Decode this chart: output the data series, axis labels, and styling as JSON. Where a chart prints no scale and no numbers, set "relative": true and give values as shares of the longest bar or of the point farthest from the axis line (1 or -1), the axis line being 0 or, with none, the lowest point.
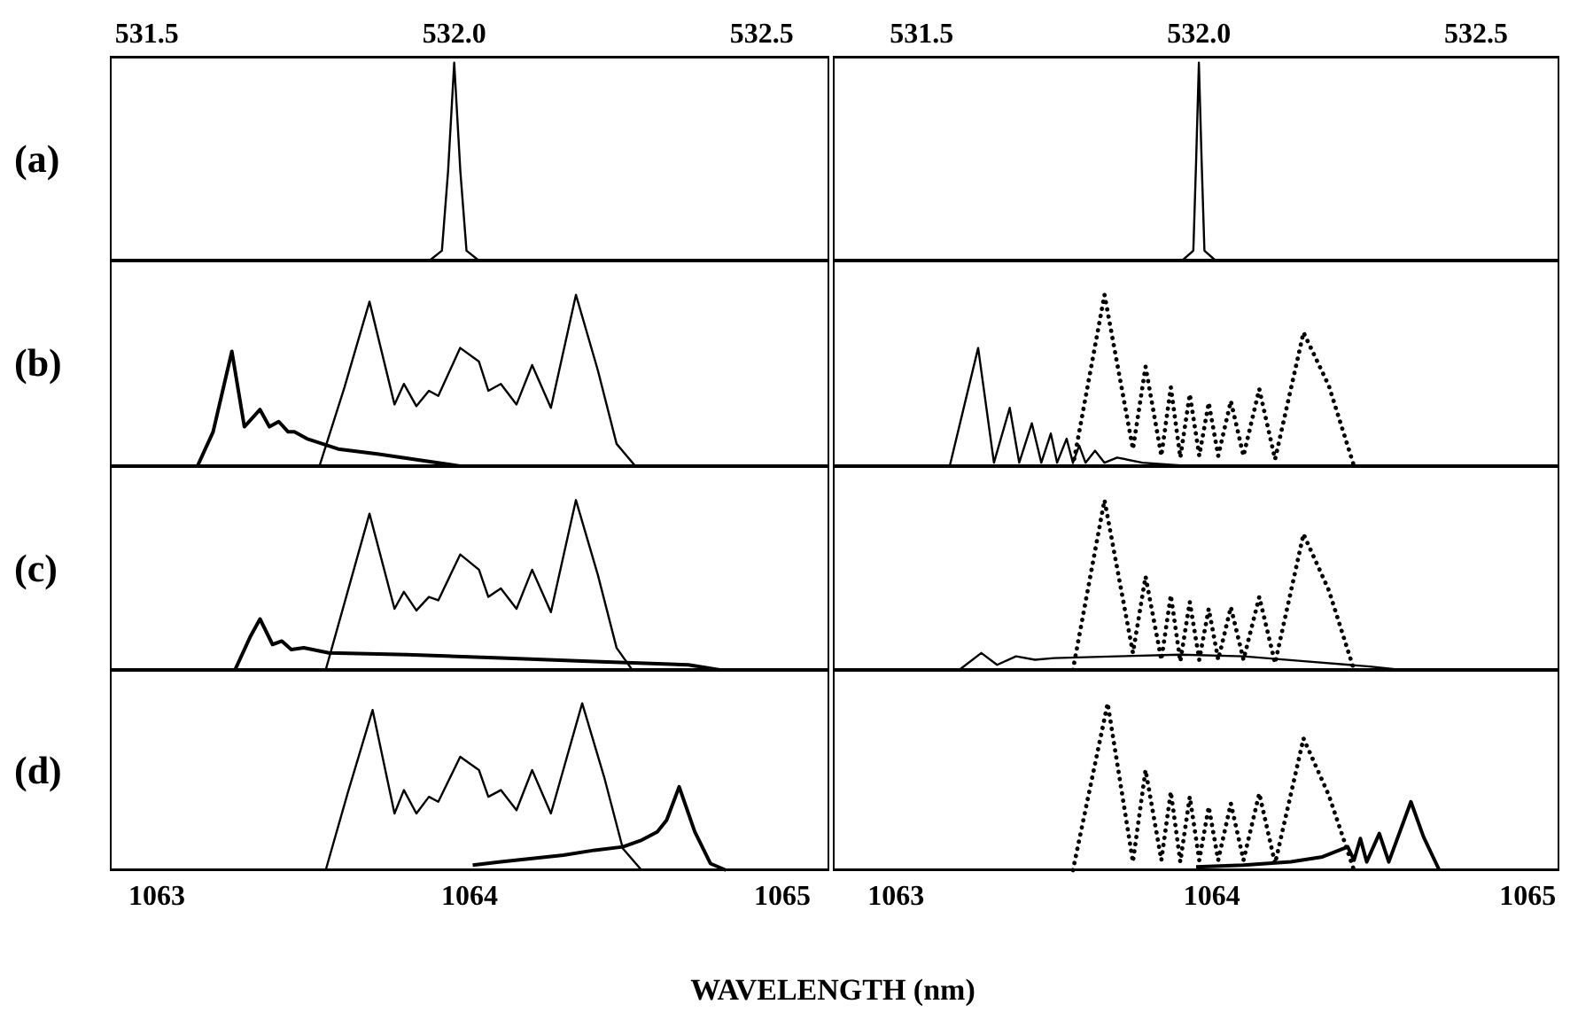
{
  "chart_data": [
    {
      "type": "line",
      "relative": true,
      "ylabel": "(a)",
      "xlim": [
        531.44,
        532.61
      ],
      "xticks": [
        531.5,
        {
          "value": 532,
          "label": "532.0"
        },
        532.5
      ],
      "series": [
        {
          "color": "#000000",
          "line_style": "solid",
          "x": [
            531.96,
            531.98,
            531.99,
            532.0,
            532.01,
            532.02,
            532.04
          ],
          "values": [
            0,
            0.05,
            0.45,
            1,
            0.45,
            0.05,
            0
          ]
        }
      ]
    },
    {
      "type": "line",
      "relative": true,
      "xlim": [
        531.34,
        532.65
      ],
      "xticks": [
        531.5,
        {
          "value": 532,
          "label": "532.0"
        },
        532.5
      ],
      "series": [
        {
          "color": "#000000",
          "line_style": "solid",
          "x": [
            531.97,
            531.99,
            531.995,
            532.0,
            532.005,
            532.01,
            532.03
          ],
          "values": [
            0,
            0.05,
            0.5,
            1,
            0.5,
            0.05,
            0
          ]
        }
      ]
    },
    {
      "type": "line",
      "relative": true,
      "ylabel": "(b)",
      "xlim": [
        1062.85,
        1065.15
      ],
      "tick_labels": false,
      "series": [
        {
          "color": "#000000",
          "line_style": "solid",
          "x": [
            1063.52,
            1063.6,
            1063.68,
            1063.76,
            1063.79,
            1063.83,
            1063.87,
            1063.9,
            1063.97,
            1064.03,
            1064.06,
            1064.1,
            1064.15,
            1064.2,
            1064.26,
            1064.34,
            1064.41,
            1064.47,
            1064.53
          ],
          "values": [
            0,
            0.46,
            0.96,
            0.36,
            0.48,
            0.35,
            0.44,
            0.41,
            0.69,
            0.61,
            0.44,
            0.48,
            0.36,
            0.59,
            0.34,
            1,
            0.56,
            0.13,
            0
          ]
        },
        {
          "color": "#000000",
          "line_style": "solid",
          "x": [
            1063.13,
            1063.18,
            1063.24,
            1063.28,
            1063.33,
            1063.36,
            1063.39,
            1063.42,
            1063.44,
            1063.48,
            1063.58,
            1063.71,
            1063.86,
            1063.97
          ],
          "values": [
            0,
            0.2,
            0.67,
            0.23,
            0.33,
            0.23,
            0.26,
            0.2,
            0.2,
            0.16,
            0.1,
            0.07,
            0.03,
            0
          ]
        }
      ]
    },
    {
      "type": "line",
      "relative": true,
      "xlim": [
        1062.8,
        1065.1
      ],
      "tick_labels": false,
      "series": [
        {
          "color": "#000000",
          "line_style": "solid",
          "x": [
            1063.17,
            1063.26,
            1063.31,
            1063.36,
            1063.39,
            1063.43,
            1063.46,
            1063.49,
            1063.51,
            1063.54,
            1063.56,
            1063.58,
            1063.6,
            1063.63,
            1063.66,
            1063.7,
            1063.78,
            1063.93
          ],
          "values": [
            0,
            0.69,
            0.02,
            0.34,
            0.02,
            0.25,
            0.02,
            0.19,
            0.02,
            0.16,
            0.02,
            0.12,
            0.02,
            0.09,
            0.02,
            0.05,
            0.02,
            0
          ]
        },
        {
          "color": "#000000",
          "line_style": "dotted",
          "x": [
            1063.56,
            1063.66,
            1063.75,
            1063.79,
            1063.84,
            1063.87,
            1063.9,
            1063.93,
            1063.96,
            1063.99,
            1064.02,
            1064.06,
            1064.1,
            1064.15,
            1064.2,
            1064.29,
            1064.37,
            1064.45
          ],
          "values": [
            0,
            1,
            0.1,
            0.58,
            0.06,
            0.46,
            0.05,
            0.42,
            0.06,
            0.37,
            0.06,
            0.38,
            0.06,
            0.45,
            0.04,
            0.78,
            0.47,
            0
          ]
        }
      ]
    },
    {
      "type": "line",
      "relative": true,
      "ylabel": "(c)",
      "xlim": [
        1062.85,
        1065.15
      ],
      "tick_labels": false,
      "series": [
        {
          "color": "#000000",
          "line_style": "solid",
          "x": [
            1063.54,
            1063.61,
            1063.68,
            1063.76,
            1063.79,
            1063.83,
            1063.87,
            1063.9,
            1063.97,
            1064.03,
            1064.06,
            1064.1,
            1064.15,
            1064.2,
            1064.26,
            1064.34,
            1064.41,
            1064.47,
            1064.52
          ],
          "values": [
            0,
            0.46,
            0.92,
            0.36,
            0.46,
            0.35,
            0.43,
            0.41,
            0.68,
            0.59,
            0.43,
            0.48,
            0.36,
            0.59,
            0.34,
            1,
            0.56,
            0.13,
            0
          ]
        },
        {
          "color": "#000000",
          "line_style": "solid",
          "x": [
            1063.25,
            1063.3,
            1063.33,
            1063.37,
            1063.4,
            1063.43,
            1063.47,
            1063.55,
            1063.8,
            1064.1,
            1064.4,
            1064.7,
            1064.8
          ],
          "values": [
            0,
            0.2,
            0.3,
            0.15,
            0.17,
            0.12,
            0.13,
            0.1,
            0.09,
            0.07,
            0.05,
            0.03,
            0
          ]
        }
      ]
    },
    {
      "type": "line",
      "relative": true,
      "xlim": [
        1062.8,
        1065.1
      ],
      "tick_labels": false,
      "series": [
        {
          "color": "#000000",
          "line_style": "solid",
          "x": [
            1063.2,
            1063.27,
            1063.32,
            1063.38,
            1063.44,
            1063.5,
            1063.7,
            1063.9,
            1064.1,
            1064.3,
            1064.5,
            1064.6
          ],
          "values": [
            0,
            0.1,
            0.03,
            0.08,
            0.06,
            0.07,
            0.08,
            0.09,
            0.08,
            0.05,
            0.02,
            0
          ]
        },
        {
          "color": "#000000",
          "line_style": "dotted",
          "x": [
            1063.56,
            1063.66,
            1063.75,
            1063.79,
            1063.84,
            1063.87,
            1063.9,
            1063.93,
            1063.96,
            1063.99,
            1064.02,
            1064.06,
            1064.1,
            1064.15,
            1064.2,
            1064.29,
            1064.37,
            1064.45
          ],
          "values": [
            0,
            1,
            0.1,
            0.55,
            0.06,
            0.44,
            0.05,
            0.4,
            0.06,
            0.36,
            0.06,
            0.37,
            0.06,
            0.43,
            0.04,
            0.8,
            0.47,
            0
          ]
        }
      ]
    },
    {
      "type": "line",
      "relative": true,
      "ylabel": "(d)",
      "xlim": [
        1062.85,
        1065.15
      ],
      "xticks": [
        1063,
        1064,
        1065
      ],
      "tick_labels": "x",
      "xlabel": "WAVELENGTH (nm)",
      "series": [
        {
          "color": "#000000",
          "line_style": "solid",
          "x": [
            1063.54,
            1063.61,
            1063.69,
            1063.76,
            1063.79,
            1063.83,
            1063.87,
            1063.9,
            1063.97,
            1064.03,
            1064.06,
            1064.1,
            1064.15,
            1064.2,
            1064.26,
            1064.36,
            1064.43,
            1064.49,
            1064.55
          ],
          "values": [
            0,
            0.46,
            0.96,
            0.34,
            0.48,
            0.34,
            0.44,
            0.41,
            0.68,
            0.6,
            0.44,
            0.48,
            0.36,
            0.6,
            0.34,
            1,
            0.56,
            0.13,
            0
          ]
        },
        {
          "color": "#000000",
          "line_style": "solid",
          "x": [
            1064.01,
            1064.1,
            1064.2,
            1064.3,
            1064.4,
            1064.49,
            1064.55,
            1064.6,
            1064.63,
            1064.67,
            1064.72,
            1064.77,
            1064.82
          ],
          "values": [
            0.03,
            0.05,
            0.07,
            0.09,
            0.12,
            0.14,
            0.18,
            0.23,
            0.3,
            0.5,
            0.23,
            0.04,
            0
          ]
        }
      ]
    },
    {
      "type": "line",
      "relative": true,
      "xlim": [
        1062.8,
        1065.1
      ],
      "xticks": [
        1063,
        1064,
        1065
      ],
      "tick_labels": "x",
      "series": [
        {
          "color": "#000000",
          "line_style": "dotted",
          "x": [
            1063.56,
            1063.67,
            1063.75,
            1063.79,
            1063.84,
            1063.87,
            1063.9,
            1063.93,
            1063.96,
            1063.99,
            1064.02,
            1064.06,
            1064.1,
            1064.15,
            1064.2,
            1064.29,
            1064.37,
            1064.45
          ],
          "values": [
            0,
            1,
            0.05,
            0.6,
            0.06,
            0.47,
            0.05,
            0.44,
            0.06,
            0.38,
            0.06,
            0.4,
            0.06,
            0.46,
            0.04,
            0.79,
            0.45,
            0
          ]
        },
        {
          "color": "#000000",
          "line_style": "solid",
          "x": [
            1063.95,
            1064.1,
            1064.25,
            1064.35,
            1064.43,
            1064.45,
            1064.47,
            1064.49,
            1064.53,
            1064.56,
            1064.63,
            1064.67,
            1064.72
          ],
          "values": [
            0.02,
            0.03,
            0.05,
            0.08,
            0.14,
            0.06,
            0.19,
            0.05,
            0.22,
            0.05,
            0.41,
            0.2,
            0
          ]
        }
      ]
    }
  ]
}
